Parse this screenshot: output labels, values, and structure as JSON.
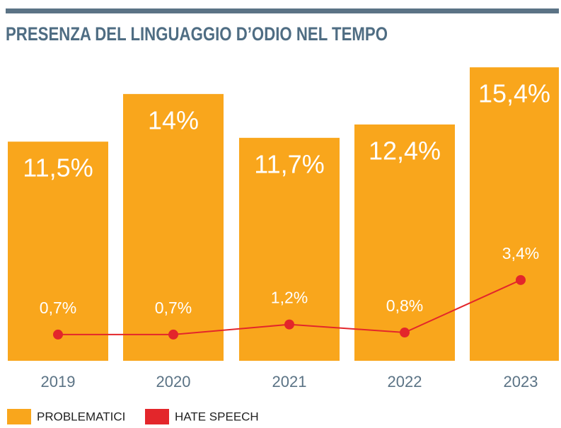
{
  "chart_data": {
    "type": "bar",
    "title": "PRESENZA DEL LINGUAGGIO D’ODIO NEL TEMPO",
    "categories": [
      "2019",
      "2020",
      "2021",
      "2022",
      "2023"
    ],
    "series": [
      {
        "name": "PROBLEMATICI",
        "color": "#f9a61c",
        "values": [
          11.5,
          14,
          11.7,
          12.4,
          15.4
        ],
        "value_labels": [
          "11,5%",
          "14%",
          "11,7%",
          "12,4%",
          "15,4%"
        ]
      },
      {
        "name": "HATE SPEECH",
        "color": "#e3262b",
        "axis": "y2",
        "values": [
          0.7,
          0.7,
          1.2,
          0.8,
          3.4
        ],
        "value_labels": [
          "0,7%",
          "0,7%",
          "1,2%",
          "0,8%",
          "3,4%"
        ]
      }
    ],
    "ylim": [
      0,
      16
    ],
    "y2lim": [
      -0.6,
      14.5
    ]
  }
}
